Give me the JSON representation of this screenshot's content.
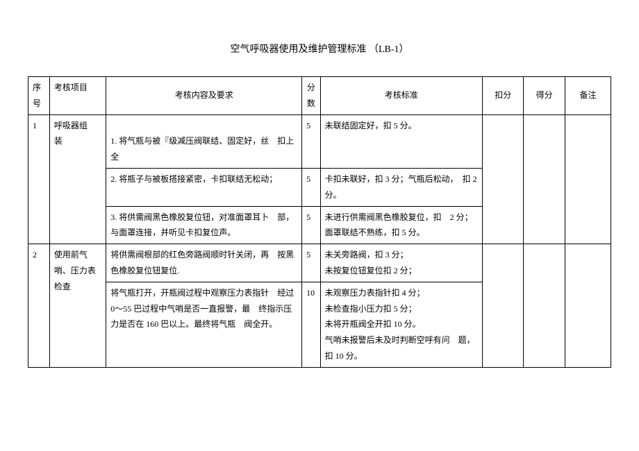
{
  "title": "空气呼吸器使用及维护管理标准 （LB-1）",
  "headers": {
    "seq_top": "",
    "seq_bottom": "序　号",
    "item": "考核项目",
    "content": "考核内容及要求",
    "score_top": "分",
    "score_bottom": "数",
    "standard": "考核标准",
    "deduct": "扣分",
    "get": "得分",
    "note": "备注"
  },
  "rows": [
    {
      "seq": "1",
      "item": "呼吸器组　装",
      "cells": [
        {
          "content": "1. 将气瓶与被『级减压阀联结、固定好，丝　扣上全",
          "score": "5",
          "standard": "未联结固定好，扣 5 分。"
        },
        {
          "content": "2. 将瓶子与被板搭接紧密，卡扣联结无松动；",
          "score": "5",
          "standard": "卡扣未联好，扣 3 分；气瓶后松动，　扣 2 分。"
        },
        {
          "content": "3. 将供需阀黑色橡胶复位钮，对准面罩耳卜　部，与面罩连接，并听见卡扣复位声。",
          "score": "5",
          "standard": "未进行供需阀黑色橡胶复位，扣　2 分；\n面罩联结不熟练，扣 5 分。"
        }
      ]
    },
    {
      "seq": "2",
      "item": "使用前气　哨、压力表　检查",
      "cells": [
        {
          "content": "将供需阀根部的红色旁路阀顺时针关闭，再　按黑色橡胶复位钮复位.",
          "score": "5",
          "standard": "未关旁路阀，扣 3 分；\n未按复位钮复位扣 2 分；"
        },
        {
          "content": "将气瓶打开，开瓶阀过程中观察压力表指针　经过 0～55 巴过程中气哨是否一直报警，最　终指示压力是否在 160 巴以上。最终将气瓶　阀全开。",
          "score": "10",
          "standard": "未观察压力表指针扣 4 分；\n未检查指小压力扣 5 分；\n未将开瓶阀全开扣 10 分。\n气哨未报警后未及时判断空呼有问　题，扣 10 分。"
        }
      ]
    }
  ],
  "colors": {
    "background": "#ffffff",
    "text": "#000000",
    "border": "#000000"
  },
  "typography": {
    "title_fontsize": 14,
    "body_fontsize": 12,
    "font_family": "SimSun"
  }
}
